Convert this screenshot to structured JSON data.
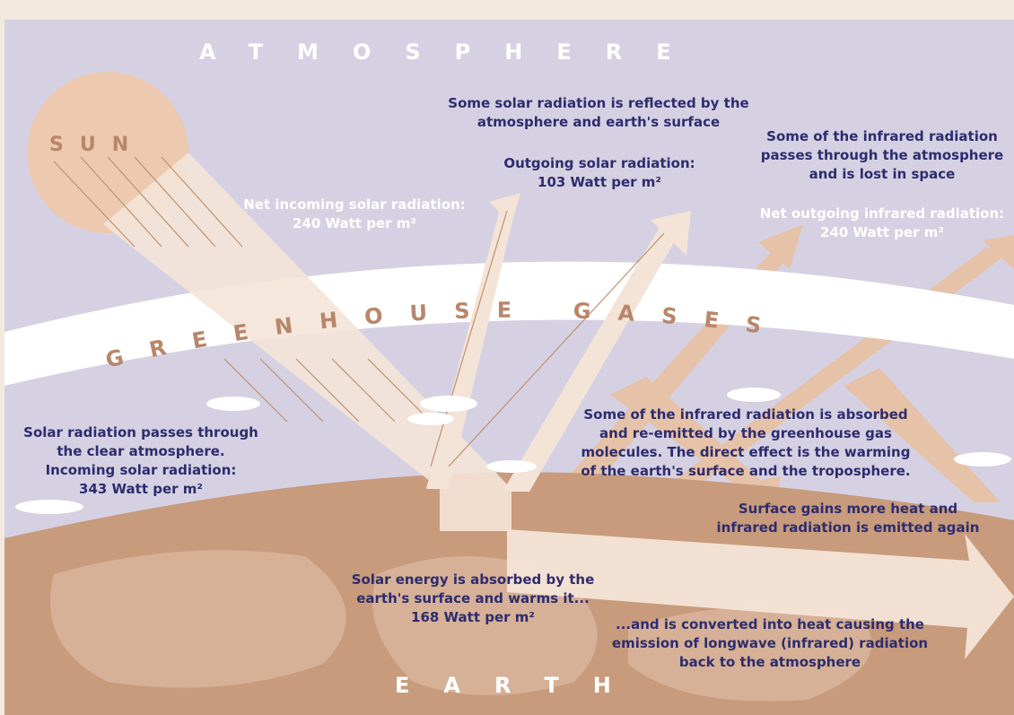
{
  "atmosphere_label": "ATMOSPHERE",
  "sun_label": "SUN",
  "greenhouse_label": "GREENHOUSE GASES",
  "earth_label": "EARTH",
  "labels": [
    {
      "lines": [
        "Some solar radiation is reflected by the",
        "atmosphere and earth's surface"
      ]
    },
    {
      "lines": [
        "Outgoing solar radiation:",
        "103 Watt per m²"
      ]
    },
    {
      "lines": [
        "Some of the infrared radiation",
        "passes through the atmosphere",
        "and is lost in space"
      ]
    },
    {
      "lines": [
        "Net outgoing infrared radiation:",
        "240 Watt per m²"
      ]
    },
    {
      "lines": [
        "Net incoming solar radiation:",
        "240 Watt per m²"
      ]
    },
    {
      "lines": [
        "Solar radiation passes through",
        "the clear atmosphere.",
        "Incoming solar radiation:",
        "343 Watt per m²"
      ]
    },
    {
      "lines": [
        "Some of the infrared radiation is absorbed",
        "and re-emitted by the greenhouse gas",
        "molecules. The direct effect is the warming",
        "of the earth's surface and the troposphere."
      ]
    },
    {
      "lines": [
        "Surface gains more heat and",
        "infrared radiation is emitted again"
      ]
    },
    {
      "lines": [
        "Solar energy is absorbed by the",
        "earth's surface and warms it...",
        "168 Watt per m²"
      ]
    },
    {
      "lines": [
        "...and is converted into heat causing the",
        "emission of longwave (infrared) radiation",
        "back to the atmosphere"
      ]
    }
  ]
}
